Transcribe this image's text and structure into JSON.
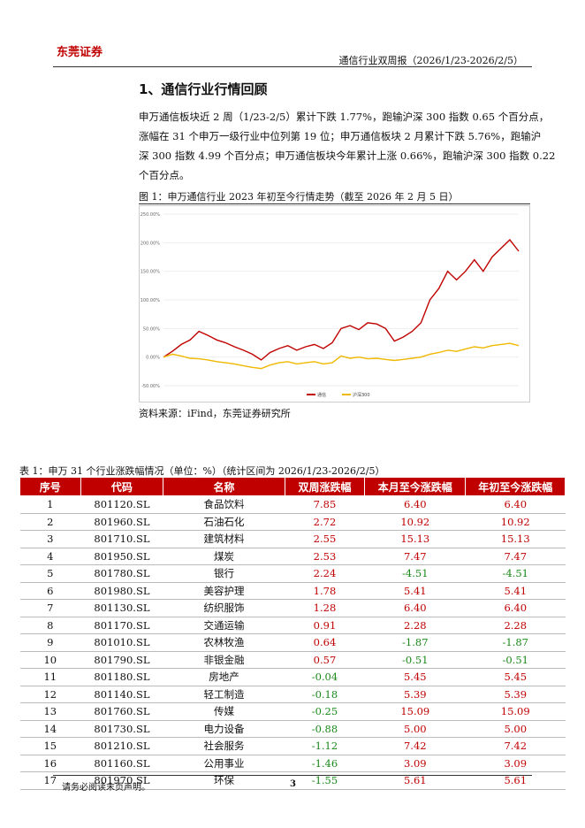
{
  "header": {
    "logo": "东莞证券",
    "report": "通信行业双周报（2026/1/23-2026/2/5）"
  },
  "section_title": "1、通信行业行情回顾",
  "paragraph": [
    "申万通信板块近 2 周（1/23-2/5）累计下跌 1.77%，跑输沪深 300 指数 0.65 个百分点，",
    "涨幅在 31 个申万一级行业中位列第 19 位；申万通信板块 2 月累计下跌 5.76%，跑输沪",
    "深 300 指数 4.99 个百分点；申万通信板块今年累计上涨 0.66%，跑输沪深 300 指数 0.22",
    "个百分点。"
  ],
  "figure": {
    "caption": "图 1：申万通信行业 2023 年初至今行情走势（截至 2026 年 2 月 5 日）",
    "chart": {
      "type": "line",
      "ylim": [
        -50,
        250
      ],
      "yticks": [
        {
          "value": -50,
          "label": "-50.00%"
        },
        {
          "value": 0,
          "label": "0.00%"
        },
        {
          "value": 50,
          "label": "50.00%"
        },
        {
          "value": 100,
          "label": "100.00%"
        },
        {
          "value": 150,
          "label": "150.00%"
        },
        {
          "value": 200,
          "label": "200.00%"
        },
        {
          "value": 250,
          "label": "250.00%"
        }
      ],
      "series": [
        {
          "name": "通信",
          "color": "#c00000",
          "values": [
            0,
            10,
            22,
            30,
            45,
            38,
            30,
            25,
            18,
            12,
            5,
            -5,
            8,
            15,
            20,
            12,
            18,
            22,
            15,
            25,
            50,
            55,
            48,
            60,
            58,
            50,
            28,
            35,
            45,
            60,
            100,
            120,
            150,
            135,
            150,
            170,
            150,
            175,
            190,
            205,
            185
          ]
        },
        {
          "name": "沪深300",
          "color": "#f0b800",
          "values": [
            0,
            5,
            2,
            -2,
            -3,
            -5,
            -8,
            -10,
            -12,
            -15,
            -18,
            -20,
            -14,
            -10,
            -8,
            -12,
            -10,
            -8,
            -12,
            -10,
            2,
            -2,
            0,
            -3,
            -2,
            -4,
            -6,
            -4,
            -2,
            0,
            5,
            8,
            12,
            10,
            14,
            18,
            16,
            20,
            22,
            24,
            20
          ]
        }
      ],
      "legend": "bottom"
    }
  },
  "source": "资料来源：iFind，东莞证券研究所",
  "table": {
    "caption": "表 1：申万 31 个行业涨跌幅情况（单位：%）（统计区间为 2026/1/23-2026/2/5）",
    "header": [
      "序号",
      "代码",
      "名称",
      "双周涨跌幅",
      "本月至今涨跌幅",
      "年初至今涨跌幅"
    ],
    "rows": [
      [
        "1",
        "801120.SL",
        "食品饮料",
        "7.85",
        "6.40",
        "6.40"
      ],
      [
        "2",
        "801960.SL",
        "石油石化",
        "2.72",
        "10.92",
        "10.92"
      ],
      [
        "3",
        "801710.SL",
        "建筑材料",
        "2.55",
        "15.13",
        "15.13"
      ],
      [
        "4",
        "801950.SL",
        "煤炭",
        "2.53",
        "7.47",
        "7.47"
      ],
      [
        "5",
        "801780.SL",
        "银行",
        "2.24",
        "-4.51",
        "-4.51"
      ],
      [
        "6",
        "801980.SL",
        "美容护理",
        "1.78",
        "5.41",
        "5.41"
      ],
      [
        "7",
        "801130.SL",
        "纺织服饰",
        "1.28",
        "6.40",
        "6.40"
      ],
      [
        "8",
        "801170.SL",
        "交通运输",
        "0.91",
        "2.28",
        "2.28"
      ],
      [
        "9",
        "801010.SL",
        "农林牧渔",
        "0.64",
        "-1.87",
        "-1.87"
      ],
      [
        "10",
        "801790.SL",
        "非银金融",
        "0.57",
        "-0.51",
        "-0.51"
      ],
      [
        "11",
        "801180.SL",
        "房地产",
        "-0.04",
        "5.45",
        "5.45"
      ],
      [
        "12",
        "801140.SL",
        "轻工制造",
        "-0.18",
        "5.39",
        "5.39"
      ],
      [
        "13",
        "801760.SL",
        "传媒",
        "-0.25",
        "15.09",
        "15.09"
      ],
      [
        "14",
        "801730.SL",
        "电力设备",
        "-0.88",
        "5.00",
        "5.00"
      ],
      [
        "15",
        "801210.SL",
        "社会服务",
        "-1.12",
        "7.42",
        "7.42"
      ],
      [
        "16",
        "801160.SL",
        "公用事业",
        "-1.46",
        "3.09",
        "3.09"
      ],
      [
        "17",
        "801970.SL",
        "环保",
        "-1.55",
        "5.61",
        "5.61"
      ]
    ]
  },
  "footer": {
    "note": "请务必阅读末页声明。",
    "page": "3"
  }
}
